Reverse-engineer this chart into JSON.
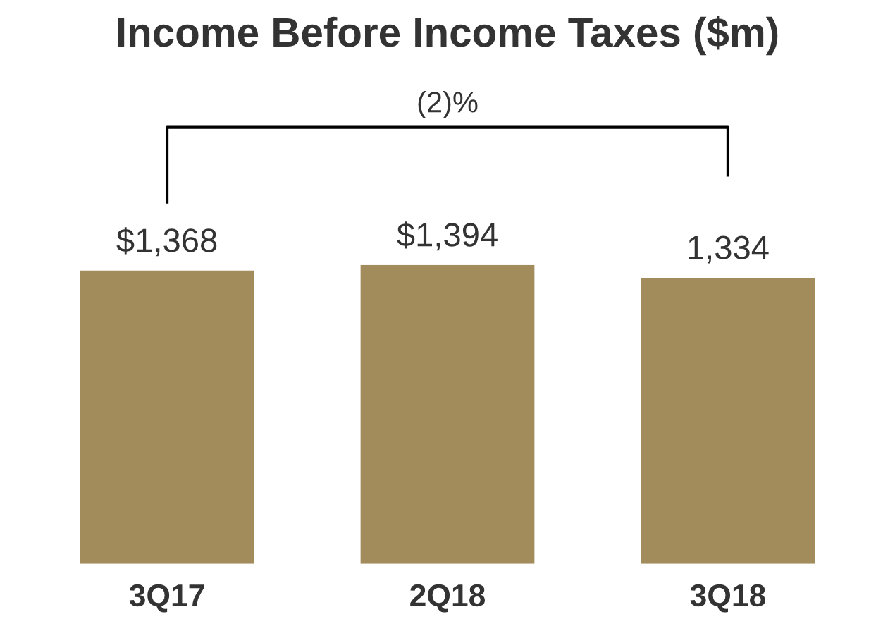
{
  "chart_data": {
    "type": "bar",
    "title": "Income Before Income Taxes ($m)",
    "categories": [
      "3Q17",
      "2Q18",
      "3Q18"
    ],
    "values": [
      1368,
      1394,
      1334
    ],
    "value_labels": [
      "$1,368",
      "$1,394",
      "1,334"
    ],
    "color": "#a38c5c",
    "annotations": [
      "(2)%"
    ],
    "grid": false,
    "legend": false
  }
}
